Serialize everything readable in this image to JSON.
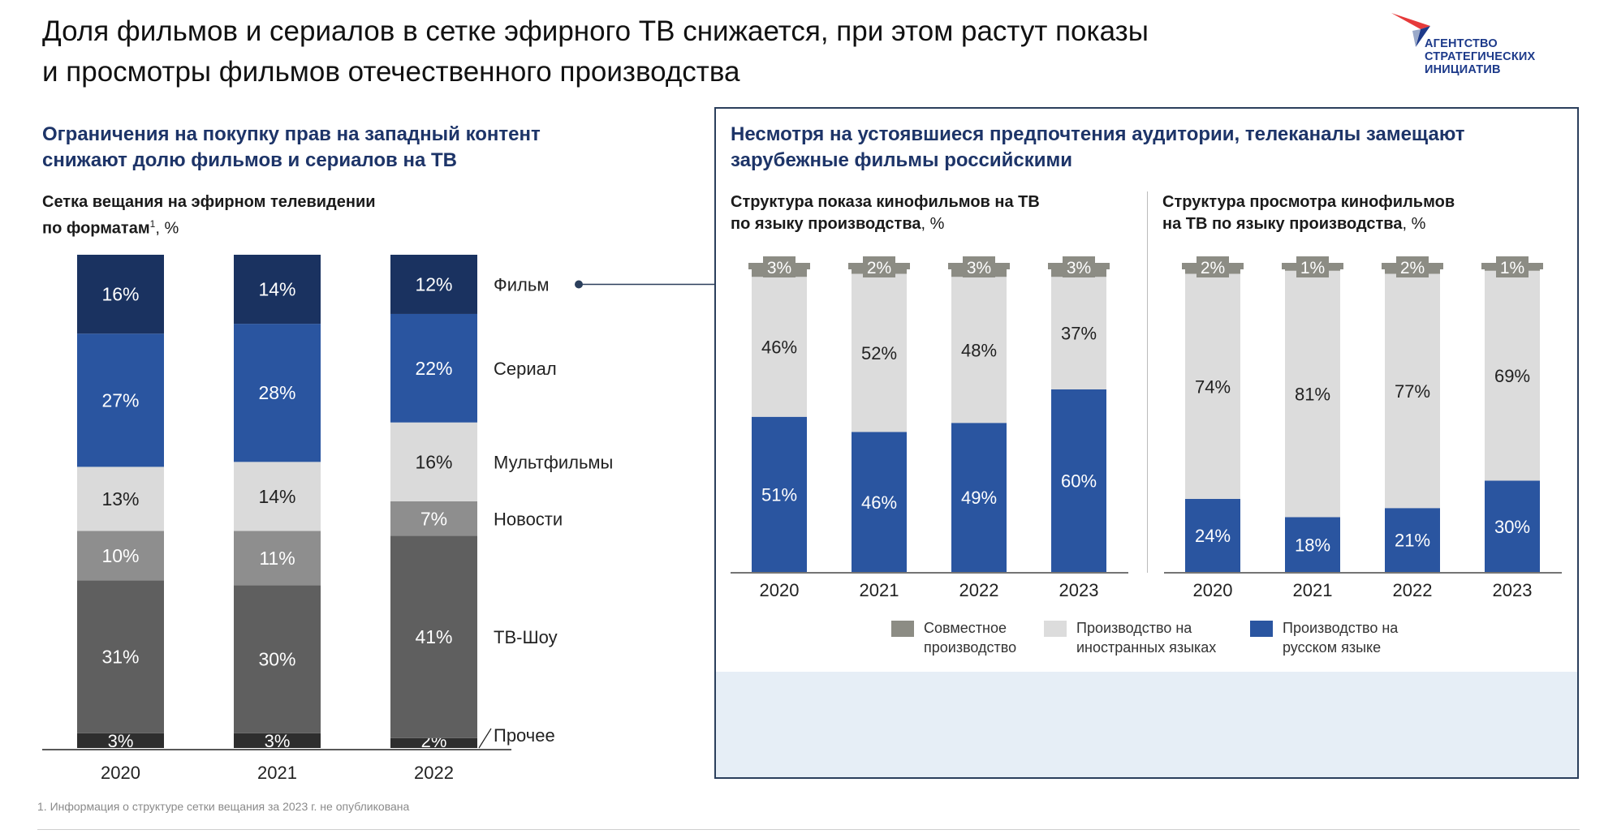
{
  "header": {
    "title_line1": "Доля фильмов и сериалов в сетке эфирного ТВ снижается, при этом растут показы",
    "title_line2": "и просмотры фильмов отечественного производства",
    "logo_line1": "АГЕНТСТВО",
    "logo_line2": "СТРАТЕГИЧЕСКИХ",
    "logo_line3": "ИНИЦИАТИВ"
  },
  "left": {
    "heading_line1": "Ограничения на покупку прав на западный контент",
    "heading_line2": "снижают долю фильмов и сериалов на ТВ",
    "subheading_line1": "Сетка вещания на эфирном телевидении",
    "subheading_line2": "по форматам",
    "subheading_sup": "1",
    "subheading_unit": ", %"
  },
  "right": {
    "heading_line1": "Несмотря на устоявшиеся предпочтения аудитории, телеканалы замещают",
    "heading_line2": "зарубежные фильмы российскими",
    "chart1_title_line1": "Структура показа кинофильмов на ТВ",
    "chart1_title_line2": "по языку производства",
    "chart1_unit": ", %",
    "chart2_title_line1": "Структура просмотра кинофильмов",
    "chart2_title_line2": "на ТВ по языку производства",
    "chart2_unit": ", %",
    "legend": [
      {
        "label": "Совместное\nпроизводство",
        "color": "#8c8c84"
      },
      {
        "label": "Производство на\nиностранных языках",
        "color": "#dcdcdc"
      },
      {
        "label": "Производство на\nрусском языке",
        "color": "#2a55a0"
      }
    ]
  },
  "footnote": "1. Информация о структуре сетки вещания за 2023 г. не опубликована",
  "chart_data": [
    {
      "type": "bar",
      "stacked": true,
      "categories": [
        "2020",
        "2021",
        "2022"
      ],
      "series": [
        {
          "name": "Прочее",
          "values": [
            3,
            3,
            2
          ],
          "color": "#2e2e2e",
          "text_color": "#ffffff"
        },
        {
          "name": "ТВ-Шоу",
          "values": [
            31,
            30,
            41
          ],
          "color": "#5f5f5f",
          "text_color": "#ffffff"
        },
        {
          "name": "Новости",
          "values": [
            10,
            11,
            7
          ],
          "color": "#8e8e8e",
          "text_color": "#ffffff"
        },
        {
          "name": "Мультфильмы",
          "values": [
            13,
            14,
            16
          ],
          "color": "#dadada",
          "text_color": "#222222"
        },
        {
          "name": "Сериал",
          "values": [
            27,
            28,
            22
          ],
          "color": "#2a55a0",
          "text_color": "#ffffff"
        },
        {
          "name": "Фильм",
          "values": [
            16,
            14,
            12
          ],
          "color": "#1a3260",
          "text_color": "#ffffff"
        }
      ],
      "ylim": [
        0,
        100
      ],
      "legend_position": "right"
    },
    {
      "type": "bar",
      "stacked": true,
      "title": "Структура показа кинофильмов на ТВ по языку производства, %",
      "categories": [
        "2020",
        "2021",
        "2022",
        "2023"
      ],
      "series": [
        {
          "name": "Производство на русском языке",
          "values": [
            51,
            46,
            49,
            60
          ],
          "color": "#2a55a0",
          "text_color": "#ffffff"
        },
        {
          "name": "Производство на иностранных языках",
          "values": [
            46,
            52,
            48,
            37
          ],
          "color": "#dcdcdc",
          "text_color": "#222222"
        },
        {
          "name": "Совместное производство",
          "values": [
            3,
            2,
            3,
            3
          ],
          "color": "#8c8c84",
          "text_color": "#ffffff"
        }
      ],
      "ylim": [
        0,
        100
      ],
      "legend_position": "bottom"
    },
    {
      "type": "bar",
      "stacked": true,
      "title": "Структура просмотра кинофильмов на ТВ по языку производства, %",
      "categories": [
        "2020",
        "2021",
        "2022",
        "2023"
      ],
      "series": [
        {
          "name": "Производство на русском языке",
          "values": [
            24,
            18,
            21,
            30
          ],
          "color": "#2a55a0",
          "text_color": "#ffffff"
        },
        {
          "name": "Производство на иностранных языках",
          "values": [
            74,
            81,
            77,
            69
          ],
          "color": "#dcdcdc",
          "text_color": "#222222"
        },
        {
          "name": "Совместное производство",
          "values": [
            2,
            1,
            2,
            1
          ],
          "color": "#8c8c84",
          "text_color": "#ffffff"
        }
      ],
      "ylim": [
        0,
        100
      ],
      "legend_position": "bottom"
    }
  ]
}
